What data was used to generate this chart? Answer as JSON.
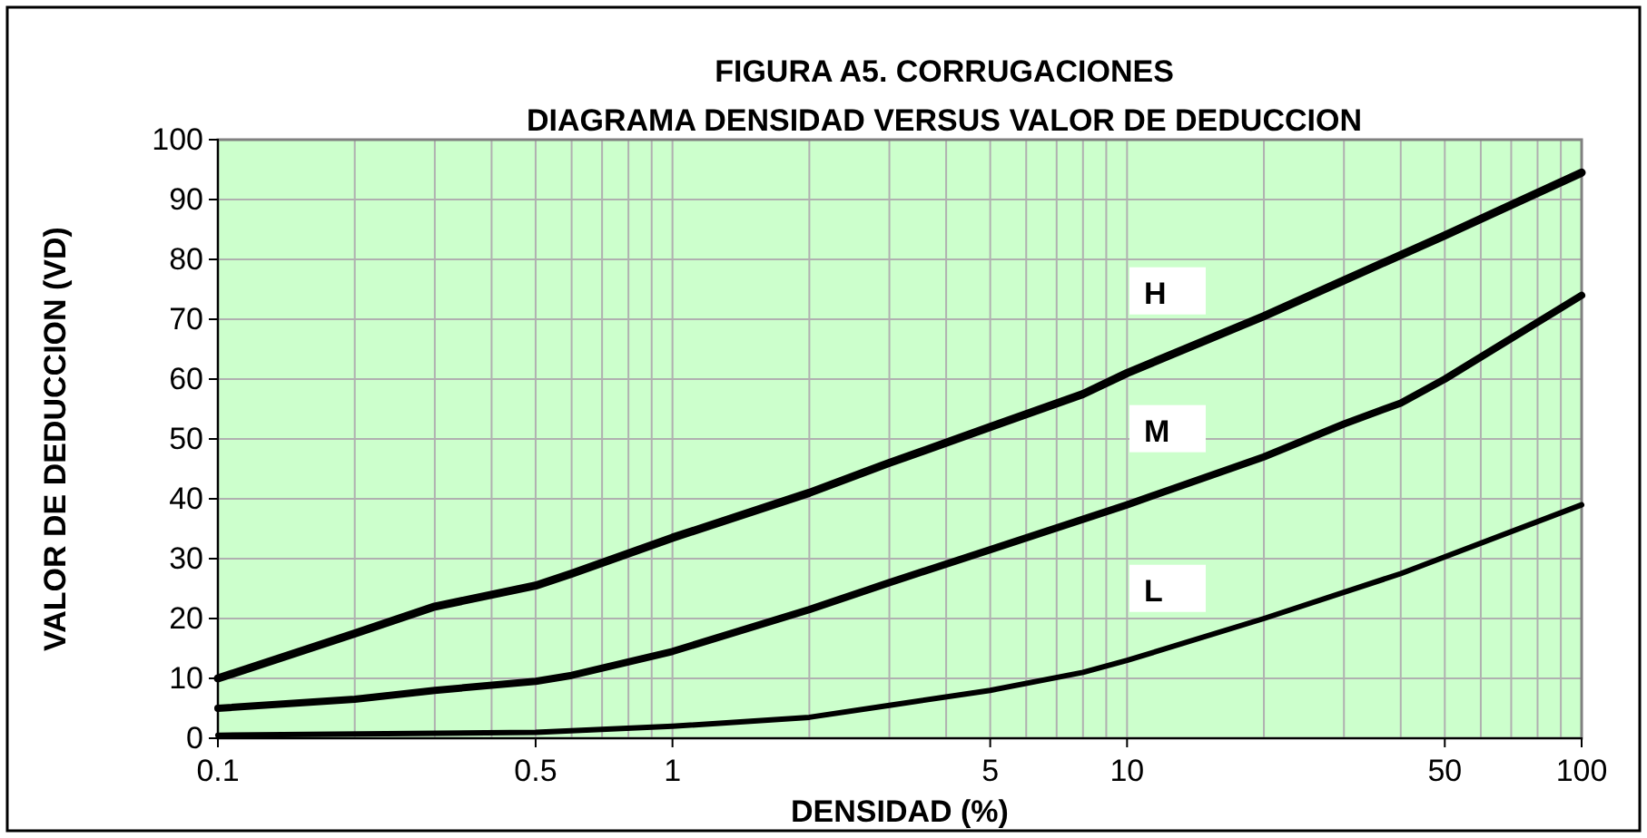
{
  "chart_data": {
    "type": "line",
    "title": "FIGURA A5. CORRUGACIONES",
    "subtitle": "DIAGRAMA DENSIDAD VERSUS VALOR DE DEDUCCION",
    "xlabel": "DENSIDAD  (%)",
    "ylabel": "VALOR DE DEDUCCION  (VD)",
    "log": "x",
    "grid": true,
    "legend": false,
    "marker": "none",
    "line_style": "solid",
    "xlim": [
      0.1,
      100
    ],
    "xticks": [
      0.1,
      0.5,
      1,
      5,
      10,
      50,
      100
    ],
    "ylim": [
      0,
      100
    ],
    "yticks": [
      0,
      10,
      20,
      30,
      40,
      50,
      60,
      70,
      80,
      90,
      100
    ],
    "series": [
      {
        "name": "H",
        "color": "#000000",
        "x": [
          0.1,
          0.2,
          0.3,
          0.5,
          0.6,
          1,
          2,
          3,
          5,
          8,
          10,
          20,
          30,
          50,
          100
        ],
        "values": [
          10,
          17.5,
          22,
          25.5,
          27.5,
          33.5,
          41,
          46,
          52,
          57.5,
          61,
          70.5,
          76.5,
          84,
          94.5
        ]
      },
      {
        "name": "M",
        "color": "#000000",
        "x": [
          0.1,
          0.2,
          0.3,
          0.5,
          0.6,
          1,
          2,
          3,
          5,
          10,
          20,
          30,
          40,
          50,
          100
        ],
        "values": [
          5,
          6.5,
          8,
          9.5,
          10.5,
          14.5,
          21.5,
          26,
          31.5,
          39,
          47,
          52.5,
          56,
          60,
          74
        ]
      },
      {
        "name": "L",
        "color": "#000000",
        "x": [
          0.1,
          0.5,
          1,
          2,
          3,
          5,
          8,
          10,
          20,
          40,
          100
        ],
        "values": [
          0.5,
          1,
          2,
          3.5,
          5.5,
          8,
          11,
          13,
          20,
          27.5,
          39
        ]
      }
    ]
  }
}
